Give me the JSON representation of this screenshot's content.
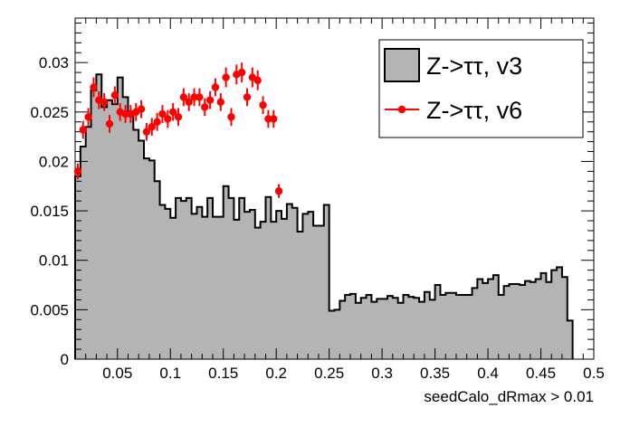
{
  "chart_data": {
    "type": "histogram",
    "xlabel": "seedCalo_dRmax > 0.01",
    "ylabel": "",
    "xlim": [
      0.01,
      0.5
    ],
    "ylim": [
      0,
      0.0345
    ],
    "grid": false,
    "legend_position": "top-right",
    "x_ticks": [
      "0.05",
      "0.1",
      "0.15",
      "0.2",
      "0.25",
      "0.3",
      "0.35",
      "0.4",
      "0.45",
      "0.5"
    ],
    "y_ticks": [
      "0",
      "0.005",
      "0.01",
      "0.015",
      "0.02",
      "0.025",
      "0.03"
    ],
    "series": [
      {
        "name": "Z->ττ, v3",
        "style": "filled-histogram",
        "fill_color": "#b4b4b4",
        "line_color": "#000000",
        "bin_edges_start": 0.01,
        "bin_width": 0.005,
        "values": [
          0.0185,
          0.0215,
          0.0235,
          0.0272,
          0.0288,
          0.0255,
          0.0262,
          0.0258,
          0.0285,
          0.0265,
          0.025,
          0.0232,
          0.0221,
          0.0203,
          0.0201,
          0.018,
          0.0156,
          0.0152,
          0.0143,
          0.0163,
          0.016,
          0.0163,
          0.0147,
          0.0154,
          0.0144,
          0.0163,
          0.0144,
          0.0144,
          0.0175,
          0.0163,
          0.0141,
          0.0163,
          0.0149,
          0.0151,
          0.0133,
          0.0139,
          0.0164,
          0.0139,
          0.015,
          0.0142,
          0.0157,
          0.0153,
          0.0129,
          0.0147,
          0.0149,
          0.0135,
          0.0135,
          0.0156,
          0.0049,
          0.005,
          0.0059,
          0.0065,
          0.0066,
          0.0057,
          0.0062,
          0.0065,
          0.0058,
          0.0061,
          0.0061,
          0.0064,
          0.0062,
          0.0057,
          0.0065,
          0.0063,
          0.0062,
          0.0058,
          0.0068,
          0.006,
          0.0075,
          0.0065,
          0.0067,
          0.0067,
          0.0065,
          0.0065,
          0.0065,
          0.0072,
          0.0081,
          0.0077,
          0.0081,
          0.0085,
          0.0065,
          0.0074,
          0.0076,
          0.0076,
          0.0075,
          0.0079,
          0.0078,
          0.0081,
          0.0087,
          0.0078,
          0.009,
          0.0093,
          0.0083,
          0.0039
        ]
      },
      {
        "name": "Z->ττ, v6",
        "style": "markers-with-errors",
        "color": "#ff0000",
        "points": [
          {
            "x": 0.0125,
            "y": 0.019,
            "err": 0.0008
          },
          {
            "x": 0.0175,
            "y": 0.0232,
            "err": 0.0009
          },
          {
            "x": 0.0225,
            "y": 0.0245,
            "err": 0.0009
          },
          {
            "x": 0.0275,
            "y": 0.0275,
            "err": 0.001
          },
          {
            "x": 0.0325,
            "y": 0.0262,
            "err": 0.0009
          },
          {
            "x": 0.0375,
            "y": 0.026,
            "err": 0.0009
          },
          {
            "x": 0.0425,
            "y": 0.0238,
            "err": 0.0009
          },
          {
            "x": 0.0475,
            "y": 0.0267,
            "err": 0.0009
          },
          {
            "x": 0.0525,
            "y": 0.025,
            "err": 0.0009
          },
          {
            "x": 0.0575,
            "y": 0.0248,
            "err": 0.0009
          },
          {
            "x": 0.0625,
            "y": 0.0248,
            "err": 0.0009
          },
          {
            "x": 0.0675,
            "y": 0.025,
            "err": 0.0009
          },
          {
            "x": 0.0725,
            "y": 0.0253,
            "err": 0.0009
          },
          {
            "x": 0.0775,
            "y": 0.023,
            "err": 0.0009
          },
          {
            "x": 0.0825,
            "y": 0.0235,
            "err": 0.0009
          },
          {
            "x": 0.0875,
            "y": 0.024,
            "err": 0.0009
          },
          {
            "x": 0.0925,
            "y": 0.0248,
            "err": 0.0009
          },
          {
            "x": 0.0975,
            "y": 0.0243,
            "err": 0.0009
          },
          {
            "x": 0.1025,
            "y": 0.025,
            "err": 0.0009
          },
          {
            "x": 0.1075,
            "y": 0.0245,
            "err": 0.0009
          },
          {
            "x": 0.1125,
            "y": 0.0265,
            "err": 0.0009
          },
          {
            "x": 0.1175,
            "y": 0.026,
            "err": 0.0009
          },
          {
            "x": 0.1225,
            "y": 0.0265,
            "err": 0.0009
          },
          {
            "x": 0.1275,
            "y": 0.0265,
            "err": 0.0009
          },
          {
            "x": 0.1325,
            "y": 0.0255,
            "err": 0.0009
          },
          {
            "x": 0.1375,
            "y": 0.0262,
            "err": 0.0009
          },
          {
            "x": 0.1425,
            "y": 0.0275,
            "err": 0.0009
          },
          {
            "x": 0.1475,
            "y": 0.026,
            "err": 0.0009
          },
          {
            "x": 0.1525,
            "y": 0.0285,
            "err": 0.001
          },
          {
            "x": 0.1575,
            "y": 0.0245,
            "err": 0.0009
          },
          {
            "x": 0.1625,
            "y": 0.0288,
            "err": 0.001
          },
          {
            "x": 0.1675,
            "y": 0.029,
            "err": 0.001
          },
          {
            "x": 0.1725,
            "y": 0.0265,
            "err": 0.0009
          },
          {
            "x": 0.1775,
            "y": 0.0285,
            "err": 0.001
          },
          {
            "x": 0.1825,
            "y": 0.0282,
            "err": 0.001
          },
          {
            "x": 0.1875,
            "y": 0.0257,
            "err": 0.0009
          },
          {
            "x": 0.1925,
            "y": 0.0243,
            "err": 0.0009
          },
          {
            "x": 0.1975,
            "y": 0.0243,
            "err": 0.0009
          },
          {
            "x": 0.2025,
            "y": 0.017,
            "err": 0.0007
          }
        ]
      }
    ]
  }
}
